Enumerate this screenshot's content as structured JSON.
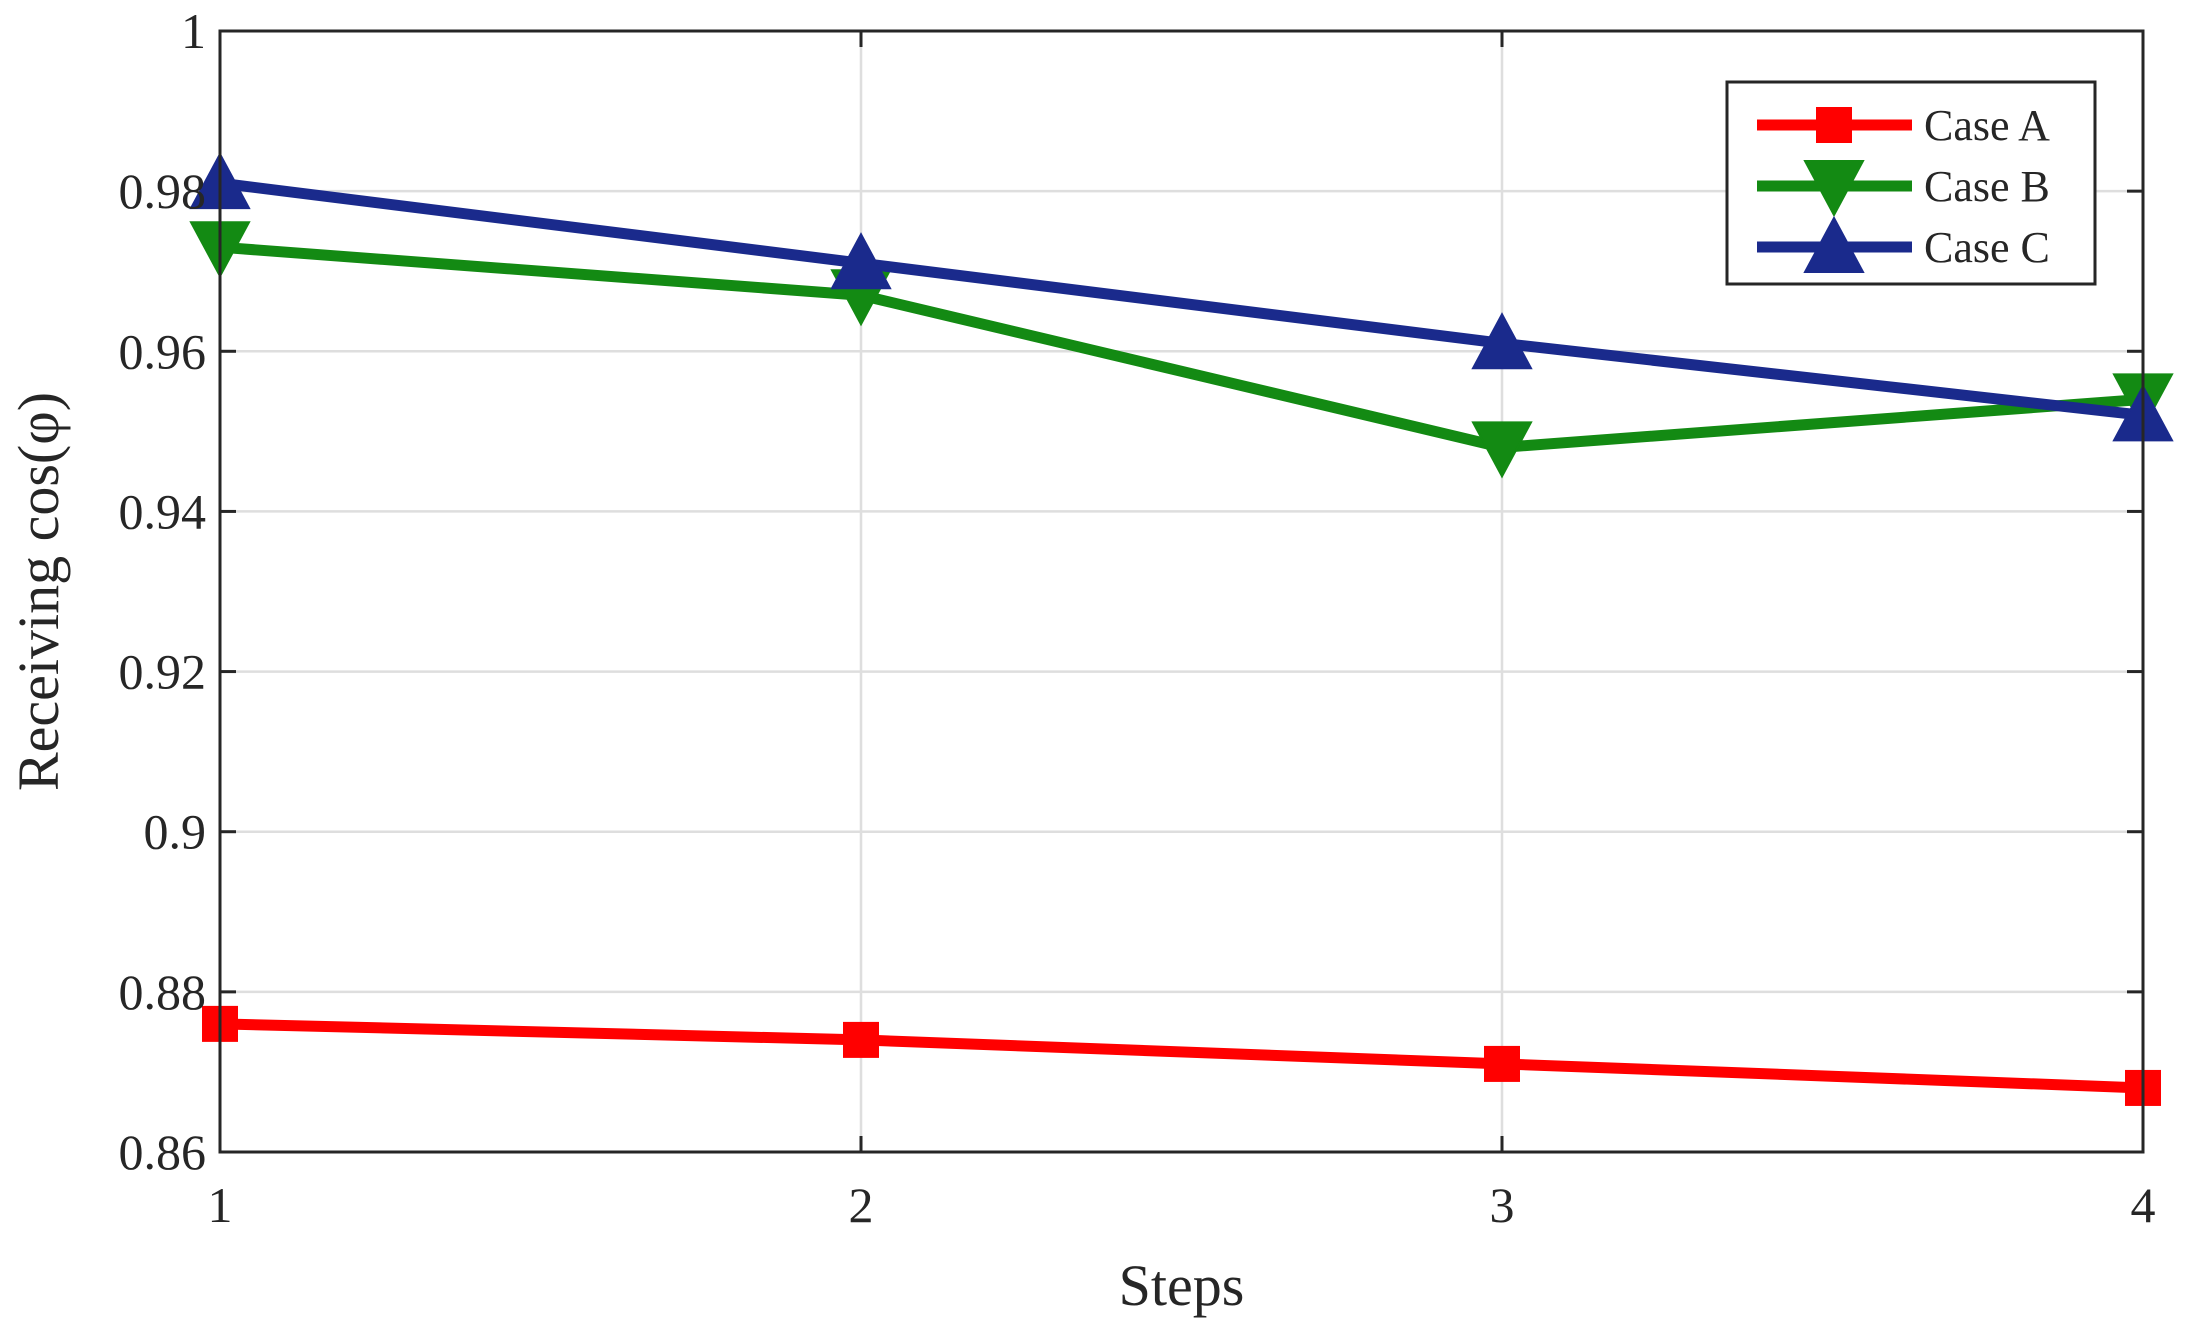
{
  "chart_data": {
    "type": "line",
    "title": "",
    "xlabel": "Steps",
    "ylabel": "Receiving cos(φ)",
    "x": [
      1,
      2,
      3,
      4
    ],
    "xlim": [
      1,
      4
    ],
    "ylim": [
      0.86,
      1
    ],
    "xticks": [
      "1",
      "2",
      "3",
      "4"
    ],
    "yticks": [
      "0.86",
      "0.88",
      "0.9",
      "0.92",
      "0.94",
      "0.96",
      "0.98",
      "1"
    ],
    "yticks_values": [
      0.86,
      0.88,
      0.9,
      0.92,
      0.94,
      0.96,
      0.98,
      1
    ],
    "grid": true,
    "legend_position": "top-right",
    "series": [
      {
        "name": "Case A",
        "values": [
          0.876,
          0.874,
          0.871,
          0.868
        ],
        "color": "#ff0000",
        "marker": "square"
      },
      {
        "name": "Case B",
        "values": [
          0.973,
          0.967,
          0.948,
          0.954
        ],
        "color": "#138a13",
        "marker": "triangle-down"
      },
      {
        "name": "Case C",
        "values": [
          0.981,
          0.971,
          0.961,
          0.952
        ],
        "color": "#1a2a8c",
        "marker": "triangle-up"
      }
    ]
  }
}
